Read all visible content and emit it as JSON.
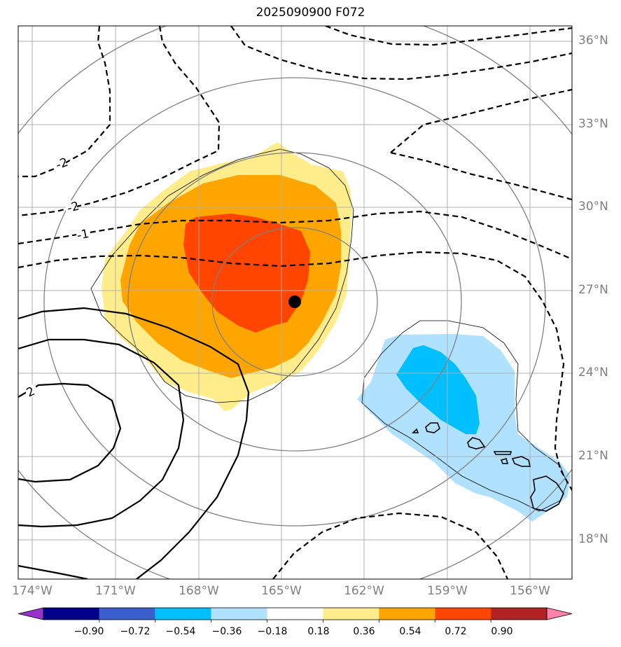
{
  "title": "2025090900 F072",
  "lat_labels": [
    "36°N",
    "33°N",
    "30°N",
    "27°N",
    "24°N",
    "21°N",
    "18°N"
  ],
  "lon_labels": [
    "174°W",
    "171°W",
    "168°W",
    "165°W",
    "162°W",
    "159°W",
    "156°W"
  ],
  "colorbar": {
    "tick_labels": [
      "−0.90",
      "−0.72",
      "−0.54",
      "−0.36",
      "−0.18",
      "0.18",
      "0.36",
      "0.54",
      "0.72",
      "0.90"
    ],
    "colors": [
      "#9932cc",
      "#00008b",
      "#3a5fcd",
      "#00bfff",
      "#b0e2ff",
      "#ffffff",
      "#ffec8b",
      "#ffa500",
      "#ff4500",
      "#b22222",
      "#ff82ab"
    ]
  },
  "contour_labels": [
    "-2",
    "-2",
    "-1",
    "2"
  ],
  "map": {
    "storm_center": {
      "lat": 26.5,
      "lon": -164.6
    },
    "lat_range": [
      16.6,
      36.6
    ],
    "lon_range": [
      -174.0,
      -154.0
    ],
    "filled_colors": {
      "light_yellow": "#ffec8b",
      "orange": "#ffa500",
      "red_orange": "#ff4500",
      "light_blue": "#b0e2ff",
      "blue": "#00bfff"
    },
    "gridline_color": "#b0b0b0",
    "range_ring_color": "#808080"
  }
}
